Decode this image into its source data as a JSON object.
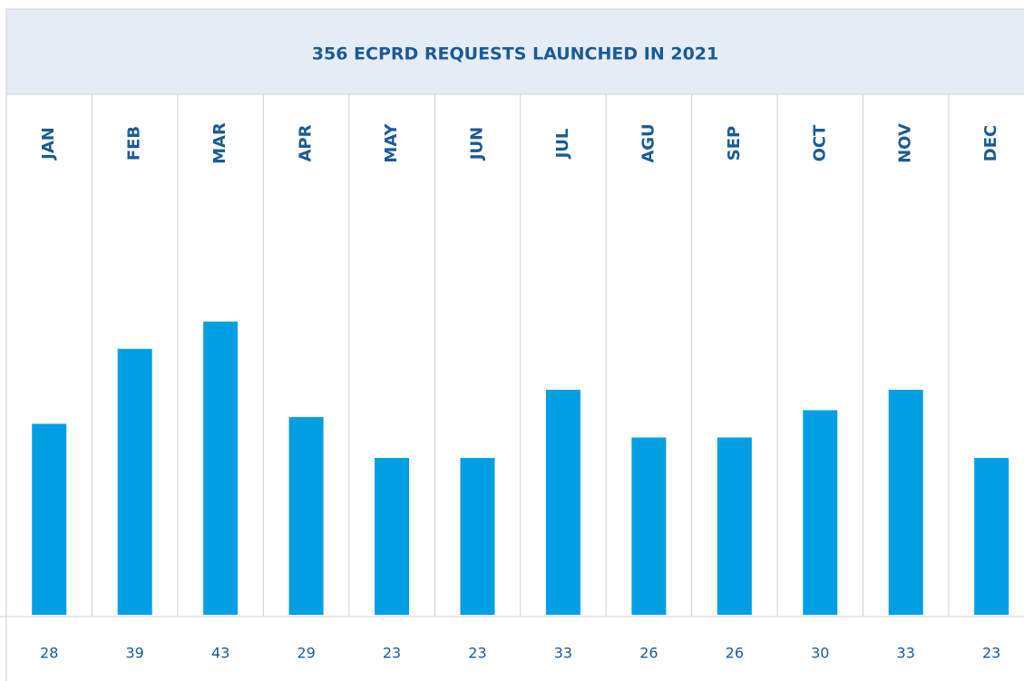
{
  "chart_data": {
    "type": "bar",
    "title": "356 ECPRD REQUESTS LAUNCHED IN 2021",
    "categories": [
      "JAN",
      "FEB",
      "MAR",
      "APR",
      "MAY",
      "JUN",
      "JUL",
      "AGU",
      "SEP",
      "OCT",
      "NOV",
      "DEC"
    ],
    "values": [
      28,
      39,
      43,
      29,
      23,
      23,
      33,
      26,
      26,
      30,
      33,
      23
    ],
    "color": "#009fe3"
  }
}
